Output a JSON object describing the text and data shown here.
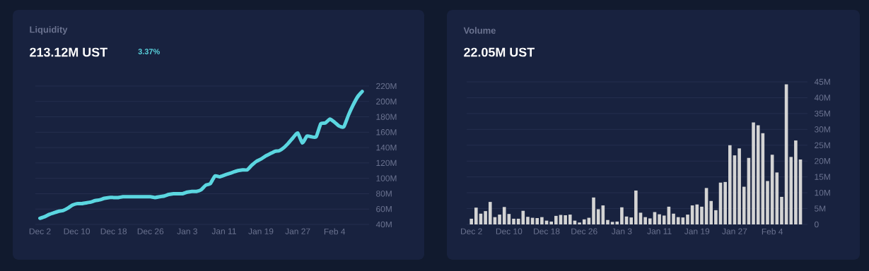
{
  "chart_data": [
    {
      "type": "line",
      "title": "Liquidity",
      "subtitle": "213.12M UST",
      "annotations": [
        "3.37%"
      ],
      "categories": [
        "Dec 2",
        null,
        null,
        null,
        null,
        null,
        null,
        null,
        "Dec 10",
        null,
        null,
        null,
        null,
        null,
        null,
        null,
        "Dec 18",
        null,
        null,
        null,
        null,
        null,
        null,
        null,
        "Dec 26",
        null,
        null,
        null,
        null,
        null,
        null,
        null,
        "Jan 3",
        null,
        null,
        null,
        null,
        null,
        null,
        null,
        "Jan 11",
        null,
        null,
        null,
        null,
        null,
        null,
        null,
        "Jan 19",
        null,
        null,
        null,
        null,
        null,
        null,
        null,
        "Jan 27",
        null,
        null,
        null,
        null,
        null,
        null,
        null,
        "Feb 4",
        null,
        null,
        null,
        null,
        null,
        null
      ],
      "values": [
        48,
        50,
        53,
        55,
        57,
        58,
        61,
        65,
        67,
        67,
        68,
        69,
        71,
        72,
        74,
        75,
        75,
        75,
        76,
        76,
        76,
        76,
        76,
        76,
        76,
        75,
        76,
        77,
        79,
        80,
        80,
        80,
        82,
        83,
        83,
        85,
        91,
        93,
        103,
        102,
        104,
        106,
        108,
        110,
        111,
        111,
        117,
        122,
        125,
        129,
        132,
        135,
        136,
        140,
        146,
        153,
        159,
        146,
        155,
        154,
        154,
        171,
        172,
        177,
        173,
        168,
        167,
        182,
        195,
        206,
        213
      ],
      "color": "#5bd6e0",
      "ylim": [
        40,
        220
      ],
      "yticks": [
        {
          "value": 40,
          "label": "40M"
        },
        {
          "value": 60,
          "label": "60M"
        },
        {
          "value": 80,
          "label": "80M"
        },
        {
          "value": 100,
          "label": "100M"
        },
        {
          "value": 120,
          "label": "120M"
        },
        {
          "value": 140,
          "label": "140M"
        },
        {
          "value": 160,
          "label": "160M"
        },
        {
          "value": 180,
          "label": "180M"
        },
        {
          "value": 200,
          "label": "200M"
        },
        {
          "value": 220,
          "label": "220M"
        }
      ],
      "grid": "y",
      "marker": "none",
      "line_style": "solid"
    },
    {
      "type": "bar",
      "title": "Volume",
      "subtitle": "22.05M UST",
      "categories": [
        "Dec 2",
        null,
        null,
        null,
        null,
        null,
        null,
        null,
        "Dec 10",
        null,
        null,
        null,
        null,
        null,
        null,
        null,
        "Dec 18",
        null,
        null,
        null,
        null,
        null,
        null,
        null,
        "Dec 26",
        null,
        null,
        null,
        null,
        null,
        null,
        null,
        "Jan 3",
        null,
        null,
        null,
        null,
        null,
        null,
        null,
        "Jan 11",
        null,
        null,
        null,
        null,
        null,
        null,
        null,
        "Jan 19",
        null,
        null,
        null,
        null,
        null,
        null,
        null,
        "Jan 27",
        null,
        null,
        null,
        null,
        null,
        null,
        null,
        "Feb 4",
        null,
        null,
        null,
        null,
        null,
        null
      ],
      "values": [
        1.8,
        5.3,
        3.4,
        4.2,
        7.1,
        2.3,
        3.1,
        5.5,
        3.3,
        1.8,
        1.8,
        4.3,
        2.4,
        2.1,
        2.0,
        2.3,
        1.2,
        0.9,
        2.7,
        3.0,
        2.9,
        3.1,
        1.2,
        0.6,
        1.6,
        2.1,
        8.5,
        4.8,
        6.0,
        1.4,
        0.8,
        0.9,
        5.4,
        2.5,
        2.2,
        10.7,
        3.7,
        2.3,
        1.9,
        3.9,
        3.2,
        2.8,
        5.6,
        3.4,
        2.3,
        2.2,
        3.1,
        6.0,
        6.3,
        5.6,
        11.5,
        7.4,
        4.5,
        13.2,
        13.4,
        25.0,
        21.8,
        24.0,
        11.9,
        21.0,
        32.2,
        31.3,
        28.8,
        13.7,
        22.0,
        16.4,
        8.7,
        44.2,
        21.3,
        26.5,
        20.5
      ],
      "color": "#d4d4d4",
      "ylim": [
        0,
        45
      ],
      "yticks": [
        0,
        {
          "value": 5,
          "label": "5M"
        },
        {
          "value": 10,
          "label": "10M"
        },
        {
          "value": 15,
          "label": "15M"
        },
        {
          "value": 20,
          "label": "20M"
        },
        {
          "value": 25,
          "label": "25M"
        },
        {
          "value": 30,
          "label": "30M"
        },
        {
          "value": 35,
          "label": "35M"
        },
        {
          "value": 40,
          "label": "40M"
        },
        {
          "value": 45,
          "label": "45M"
        }
      ],
      "grid": "y"
    }
  ]
}
